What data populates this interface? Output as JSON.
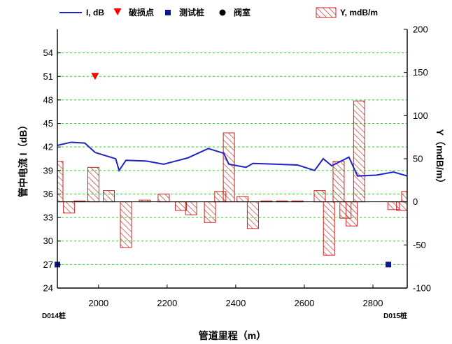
{
  "chart_data": {
    "type": "line+bar",
    "x_axis": {
      "label": "管道里程（m）",
      "range": [
        1880,
        2900
      ],
      "ticks": [
        2000,
        2200,
        2400,
        2600,
        2800
      ]
    },
    "y_left": {
      "label": "管中电流 I（dB）",
      "range": [
        24,
        57
      ],
      "ticks": [
        24,
        27,
        30,
        33,
        36,
        39,
        42,
        45,
        48,
        51,
        54
      ],
      "grid": true
    },
    "y_right": {
      "label": "Y（mdB/m）",
      "range": [
        -100,
        200
      ],
      "ticks": [
        -100,
        -50,
        0,
        50,
        100,
        150,
        200
      ]
    },
    "legend": {
      "placement": "top",
      "items": [
        {
          "key": "line",
          "label": "I, dB"
        },
        {
          "key": "damage",
          "label": "破损点"
        },
        {
          "key": "test_post",
          "label": "测试桩"
        },
        {
          "key": "valve",
          "label": "阀室"
        },
        {
          "key": "bars",
          "label": "Y, mdB/m"
        }
      ]
    },
    "station_labels": [
      {
        "x": 1880,
        "text": "D014桩",
        "align": "start"
      },
      {
        "x": 2900,
        "text": "D015桩",
        "align": "end"
      }
    ],
    "series": [
      {
        "key": "line",
        "name": "I, dB",
        "axis": "left",
        "type": "line",
        "color": "#1f22c4",
        "points": [
          [
            1880,
            42.2
          ],
          [
            1920,
            42.6
          ],
          [
            1960,
            42.5
          ],
          [
            1990,
            41.3
          ],
          [
            2050,
            40.5
          ],
          [
            2060,
            39.0
          ],
          [
            2080,
            40.3
          ],
          [
            2140,
            40.2
          ],
          [
            2190,
            39.8
          ],
          [
            2260,
            40.6
          ],
          [
            2320,
            41.8
          ],
          [
            2365,
            41.2
          ],
          [
            2380,
            39.8
          ],
          [
            2430,
            39.4
          ],
          [
            2450,
            39.9
          ],
          [
            2520,
            39.8
          ],
          [
            2580,
            39.7
          ],
          [
            2630,
            39.0
          ],
          [
            2655,
            40.5
          ],
          [
            2680,
            39.6
          ],
          [
            2730,
            40.7
          ],
          [
            2755,
            38.3
          ],
          [
            2810,
            38.4
          ],
          [
            2860,
            38.8
          ],
          [
            2900,
            38.3
          ]
        ]
      },
      {
        "key": "bars",
        "name": "Y, mdB/m",
        "axis": "right",
        "type": "bar",
        "color": "#cc2222",
        "bars": [
          {
            "x": 1880,
            "y": 47
          },
          {
            "x": 1914,
            "y": -13
          },
          {
            "x": 1945,
            "y": 1
          },
          {
            "x": 1985,
            "y": 40
          },
          {
            "x": 2030,
            "y": 13
          },
          {
            "x": 2080,
            "y": -53
          },
          {
            "x": 2135,
            "y": 2
          },
          {
            "x": 2190,
            "y": 9
          },
          {
            "x": 2240,
            "y": -10
          },
          {
            "x": 2270,
            "y": -15
          },
          {
            "x": 2325,
            "y": -24
          },
          {
            "x": 2355,
            "y": 12
          },
          {
            "x": 2380,
            "y": 80
          },
          {
            "x": 2420,
            "y": 6
          },
          {
            "x": 2450,
            "y": -31
          },
          {
            "x": 2490,
            "y": 1
          },
          {
            "x": 2535,
            "y": 1
          },
          {
            "x": 2580,
            "y": 1
          },
          {
            "x": 2645,
            "y": 13
          },
          {
            "x": 2672,
            "y": -62
          },
          {
            "x": 2700,
            "y": 47
          },
          {
            "x": 2720,
            "y": -19
          },
          {
            "x": 2738,
            "y": -28
          },
          {
            "x": 2760,
            "y": 117
          },
          {
            "x": 2860,
            "y": -9
          },
          {
            "x": 2885,
            "y": -10
          },
          {
            "x": 2900,
            "y": 12
          }
        ]
      },
      {
        "key": "damage",
        "name": "破损点",
        "axis": "left",
        "type": "marker",
        "marker": "triangle-down",
        "color": "#ff0000",
        "points": [
          [
            1990,
            51
          ]
        ]
      },
      {
        "key": "test_post",
        "name": "测试桩",
        "axis": "left",
        "type": "marker",
        "marker": "square",
        "color": "#0a1a8c",
        "points": [
          [
            1880,
            27
          ],
          [
            2845,
            27
          ]
        ]
      },
      {
        "key": "valve",
        "name": "阀室",
        "axis": "left",
        "type": "marker",
        "marker": "circle",
        "color": "#000000",
        "points": []
      }
    ]
  }
}
